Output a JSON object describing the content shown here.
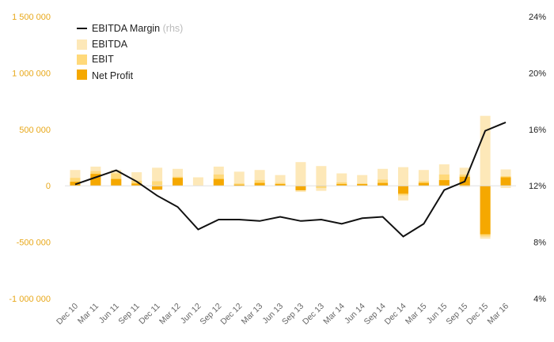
{
  "chart_data": {
    "type": "bar",
    "categories": [
      "Dec 10",
      "Mar 11",
      "Jun 11",
      "Sep 11",
      "Dec 11",
      "Mar 12",
      "Jun 12",
      "Sep 12",
      "Dec 12",
      "Mar 13",
      "Jun 13",
      "Sep 13",
      "Dec 13",
      "Mar 14",
      "Jun 14",
      "Sep 14",
      "Dec 14",
      "Mar 15",
      "Jun 15",
      "Sep 15",
      "Dec 15",
      "Mar 16"
    ],
    "series": [
      {
        "name": "EBITDA",
        "color": "#fde8b8",
        "values": [
          140000,
          170000,
          140000,
          120000,
          160000,
          150000,
          75000,
          170000,
          125000,
          140000,
          95000,
          210000,
          175000,
          110000,
          95000,
          150000,
          165000,
          140000,
          190000,
          160000,
          620000,
          145000
        ],
        "negative": [
          0,
          0,
          0,
          0,
          -15000,
          0,
          0,
          0,
          0,
          0,
          0,
          -55000,
          -45000,
          0,
          0,
          0,
          -130000,
          -5000,
          -5000,
          -10000,
          -470000,
          -20000
        ]
      },
      {
        "name": "EBIT",
        "color": "#ffd97a",
        "values": [
          70000,
          130000,
          110000,
          45000,
          40000,
          80000,
          0,
          100000,
          20000,
          50000,
          25000,
          0,
          0,
          30000,
          20000,
          55000,
          0,
          40000,
          100000,
          100000,
          0,
          85000
        ],
        "negative": [
          0,
          0,
          0,
          0,
          -20000,
          0,
          0,
          0,
          -5000,
          0,
          0,
          -30000,
          -20000,
          0,
          0,
          0,
          -85000,
          0,
          0,
          -5000,
          -450000,
          0
        ]
      },
      {
        "name": "Net Profit",
        "color": "#f5a800",
        "values": [
          35000,
          105000,
          60000,
          20000,
          0,
          70000,
          0,
          60000,
          10000,
          25000,
          15000,
          0,
          0,
          15000,
          15000,
          25000,
          0,
          25000,
          50000,
          80000,
          0,
          75000
        ],
        "negative": [
          0,
          0,
          0,
          0,
          -35000,
          0,
          0,
          0,
          0,
          0,
          0,
          -40000,
          -5000,
          0,
          0,
          0,
          -70000,
          0,
          0,
          0,
          -430000,
          0
        ]
      }
    ],
    "line": {
      "name": "EBITDA Margin",
      "axis_note": "(rhs)",
      "color": "#111111",
      "values": [
        12.1,
        12.6,
        13.1,
        12.3,
        11.3,
        10.5,
        8.9,
        9.6,
        9.6,
        9.5,
        9.8,
        9.5,
        9.6,
        9.3,
        9.7,
        9.8,
        8.4,
        9.3,
        11.7,
        12.3,
        15.9,
        16.5
      ]
    },
    "y_left": {
      "ticks": [
        1500000,
        1000000,
        500000,
        0,
        -500000,
        -1000000
      ],
      "tick_labels": [
        "1 500 000",
        "1 000 000",
        "500 000",
        "0",
        "-500 000",
        "-1 000 000"
      ],
      "range": [
        -1000000,
        1500000
      ],
      "color": "#e8a81a"
    },
    "y_right": {
      "ticks": [
        24,
        20,
        16,
        12,
        8,
        4
      ],
      "tick_labels": [
        "24%",
        "20%",
        "16%",
        "12%",
        "8%",
        "4%"
      ],
      "range": [
        4,
        24
      ]
    },
    "legend_position": "top-left",
    "grid": false
  }
}
